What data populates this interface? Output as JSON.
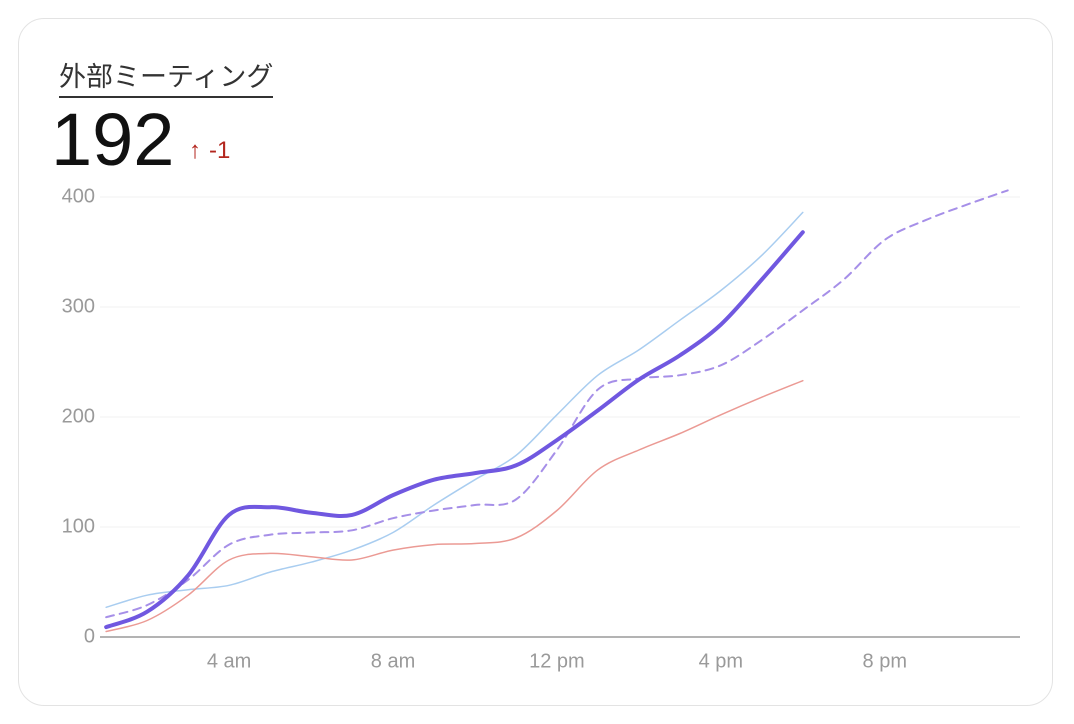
{
  "card": {
    "title": "外部ミーティング",
    "value": 192,
    "delta": -1
  },
  "chart_data": {
    "type": "line",
    "x": [
      1,
      2,
      3,
      4,
      5,
      6,
      7,
      8,
      9,
      10,
      11,
      12,
      13,
      14,
      15,
      16,
      17,
      18,
      19,
      20,
      21,
      22,
      23
    ],
    "xlim": [
      0.85,
      23.3
    ],
    "xticks": [
      {
        "value": 4,
        "label": "4 am"
      },
      {
        "value": 8,
        "label": "8 am"
      },
      {
        "value": 12,
        "label": "12 pm"
      },
      {
        "value": 16,
        "label": "4 pm"
      },
      {
        "value": 20,
        "label": "8 pm"
      }
    ],
    "ylim": [
      0,
      400
    ],
    "yticks": [
      0,
      100,
      200,
      300,
      400
    ],
    "grid": true,
    "series": [
      {
        "color": "#a9cdf0",
        "linewidth": 1.5,
        "dashed": false,
        "values": [
          27,
          38,
          43,
          47,
          59,
          68,
          79,
          95,
          120,
          143,
          165,
          202,
          238,
          261,
          288,
          315,
          347,
          386,
          null,
          null,
          null,
          null,
          null
        ]
      },
      {
        "color": "#eb9a94",
        "linewidth": 1.5,
        "dashed": false,
        "values": [
          5,
          15,
          38,
          70,
          76,
          73,
          70,
          79,
          84,
          85,
          90,
          115,
          152,
          170,
          185,
          202,
          218,
          233,
          null,
          null,
          null,
          null,
          null
        ]
      },
      {
        "color": "#a68fe8",
        "linewidth": 2,
        "dashed": true,
        "values": [
          18,
          29,
          52,
          84,
          93,
          95,
          97,
          108,
          115,
          120,
          125,
          170,
          225,
          235,
          238,
          247,
          270,
          297,
          325,
          361,
          379,
          393,
          406
        ]
      },
      {
        "color": "#7058e0",
        "linewidth": 4,
        "dashed": false,
        "values": [
          9,
          23,
          56,
          111,
          118,
          113,
          111,
          129,
          143,
          149,
          156,
          179,
          206,
          234,
          256,
          284,
          325,
          368,
          null,
          null,
          null,
          null,
          null
        ]
      }
    ]
  }
}
